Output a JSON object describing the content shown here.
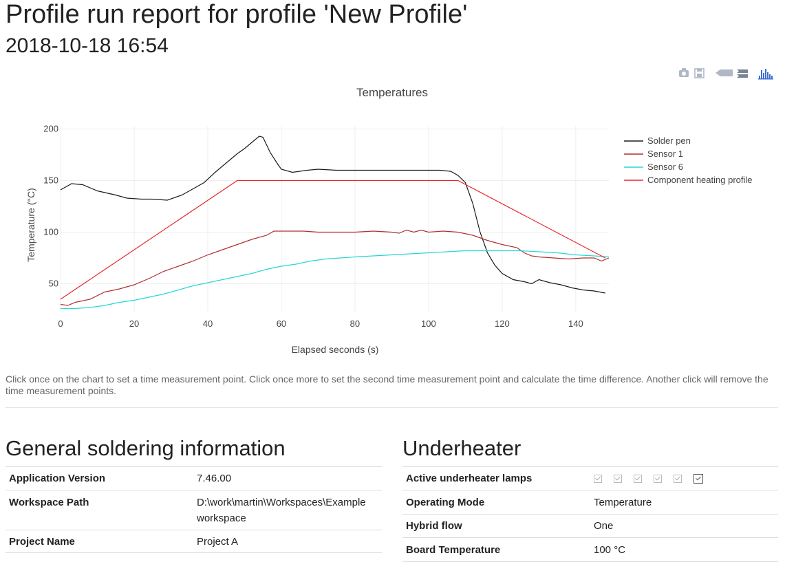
{
  "page": {
    "title": "Profile run report for profile 'New Profile'",
    "subtitle": "2018-10-18 16:54"
  },
  "modebar": {
    "icons": [
      "camera-icon",
      "save-icon",
      "hover-closest-icon",
      "hover-compare-icon",
      "plotly-logo-icon"
    ],
    "accent": "#3b6fd4"
  },
  "chart_data": {
    "type": "line",
    "title": "Temperatures",
    "xlabel": "Elapsed seconds (s)",
    "ylabel": "Temperature (°C)",
    "xlim": [
      0,
      149
    ],
    "ylim": [
      23,
      203
    ],
    "xticks": [
      0,
      20,
      40,
      60,
      80,
      100,
      120,
      140
    ],
    "yticks": [
      50,
      100,
      150,
      200
    ],
    "grid": true,
    "legend_position": "right",
    "series": [
      {
        "name": "Solder pen",
        "color": "#1a1a1a",
        "points": [
          [
            0,
            141
          ],
          [
            3,
            147
          ],
          [
            6,
            146
          ],
          [
            10,
            140
          ],
          [
            15,
            136
          ],
          [
            18,
            133
          ],
          [
            22,
            132
          ],
          [
            25,
            132
          ],
          [
            29,
            131
          ],
          [
            33,
            136
          ],
          [
            36,
            142
          ],
          [
            39,
            148
          ],
          [
            42,
            158
          ],
          [
            45,
            167
          ],
          [
            48,
            176
          ],
          [
            50,
            181
          ],
          [
            52,
            187
          ],
          [
            54,
            193
          ],
          [
            55,
            192
          ],
          [
            57,
            177
          ],
          [
            59,
            166
          ],
          [
            60,
            161
          ],
          [
            63,
            158
          ],
          [
            67,
            160
          ],
          [
            70,
            161
          ],
          [
            75,
            160
          ],
          [
            80,
            160
          ],
          [
            85,
            160
          ],
          [
            90,
            160
          ],
          [
            95,
            160
          ],
          [
            100,
            160
          ],
          [
            103,
            160
          ],
          [
            106,
            159
          ],
          [
            108,
            155
          ],
          [
            110,
            148
          ],
          [
            112,
            128
          ],
          [
            114,
            100
          ],
          [
            116,
            80
          ],
          [
            118,
            68
          ],
          [
            120,
            60
          ],
          [
            123,
            54
          ],
          [
            126,
            52
          ],
          [
            128,
            50
          ],
          [
            130,
            54
          ],
          [
            133,
            51
          ],
          [
            136,
            49
          ],
          [
            139,
            46
          ],
          [
            142,
            44
          ],
          [
            145,
            43
          ],
          [
            148,
            41
          ]
        ]
      },
      {
        "name": "Sensor 1",
        "color": "#b22f2f",
        "points": [
          [
            0,
            30
          ],
          [
            2,
            29
          ],
          [
            4,
            32
          ],
          [
            8,
            35
          ],
          [
            12,
            42
          ],
          [
            16,
            45
          ],
          [
            20,
            49
          ],
          [
            24,
            55
          ],
          [
            28,
            62
          ],
          [
            32,
            67
          ],
          [
            36,
            72
          ],
          [
            40,
            78
          ],
          [
            44,
            83
          ],
          [
            48,
            88
          ],
          [
            52,
            93
          ],
          [
            56,
            97
          ],
          [
            58,
            101
          ],
          [
            62,
            101
          ],
          [
            66,
            101
          ],
          [
            70,
            100
          ],
          [
            75,
            100
          ],
          [
            80,
            100
          ],
          [
            85,
            101
          ],
          [
            90,
            100
          ],
          [
            92,
            99
          ],
          [
            94,
            102
          ],
          [
            96,
            100
          ],
          [
            98,
            102
          ],
          [
            100,
            100
          ],
          [
            104,
            101
          ],
          [
            108,
            100
          ],
          [
            112,
            97
          ],
          [
            116,
            92
          ],
          [
            120,
            88
          ],
          [
            124,
            85
          ],
          [
            126,
            80
          ],
          [
            128,
            77
          ],
          [
            130,
            76
          ],
          [
            134,
            75
          ],
          [
            138,
            74
          ],
          [
            142,
            75
          ],
          [
            145,
            75
          ],
          [
            147,
            72
          ],
          [
            149,
            75
          ]
        ]
      },
      {
        "name": "Sensor 6",
        "color": "#26d6d6",
        "points": [
          [
            0,
            26
          ],
          [
            4,
            26
          ],
          [
            8,
            27
          ],
          [
            12,
            29
          ],
          [
            16,
            32
          ],
          [
            20,
            34
          ],
          [
            24,
            37
          ],
          [
            28,
            40
          ],
          [
            32,
            44
          ],
          [
            36,
            48
          ],
          [
            40,
            51
          ],
          [
            44,
            54
          ],
          [
            48,
            57
          ],
          [
            52,
            60
          ],
          [
            56,
            64
          ],
          [
            60,
            67
          ],
          [
            64,
            69
          ],
          [
            68,
            72
          ],
          [
            72,
            74
          ],
          [
            76,
            75
          ],
          [
            80,
            76
          ],
          [
            85,
            77
          ],
          [
            90,
            78
          ],
          [
            95,
            79
          ],
          [
            100,
            80
          ],
          [
            105,
            81
          ],
          [
            110,
            82
          ],
          [
            115,
            82
          ],
          [
            120,
            82
          ],
          [
            125,
            82
          ],
          [
            130,
            81
          ],
          [
            135,
            80
          ],
          [
            140,
            78
          ],
          [
            145,
            77
          ],
          [
            149,
            76
          ]
        ]
      },
      {
        "name": "Component heating profile",
        "color": "#e8262a",
        "points": [
          [
            0,
            35
          ],
          [
            48,
            150
          ],
          [
            108,
            150
          ],
          [
            148,
            75
          ]
        ]
      }
    ]
  },
  "help_text": "Click once on the chart to set a time measurement point. Click once more to set the second time measurement point and calculate the time difference. Another click will remove the time measurement points.",
  "general": {
    "title": "General soldering information",
    "rows": [
      {
        "key": "Application Version",
        "value": "7.46.00"
      },
      {
        "key": "Workspace Path",
        "value": "D:\\work\\martin\\Workspaces\\Example workspace"
      },
      {
        "key": "Project Name",
        "value": "Project A"
      }
    ]
  },
  "underheater": {
    "title": "Underheater",
    "rows": [
      {
        "key": "Active underheater lamps",
        "value": ""
      },
      {
        "key": "Operating Mode",
        "value": "Temperature"
      },
      {
        "key": "Hybrid flow",
        "value": "One"
      },
      {
        "key": "Board Temperature",
        "value": "100 °C"
      }
    ],
    "lamps": [
      true,
      true,
      true,
      true,
      true,
      true
    ]
  }
}
